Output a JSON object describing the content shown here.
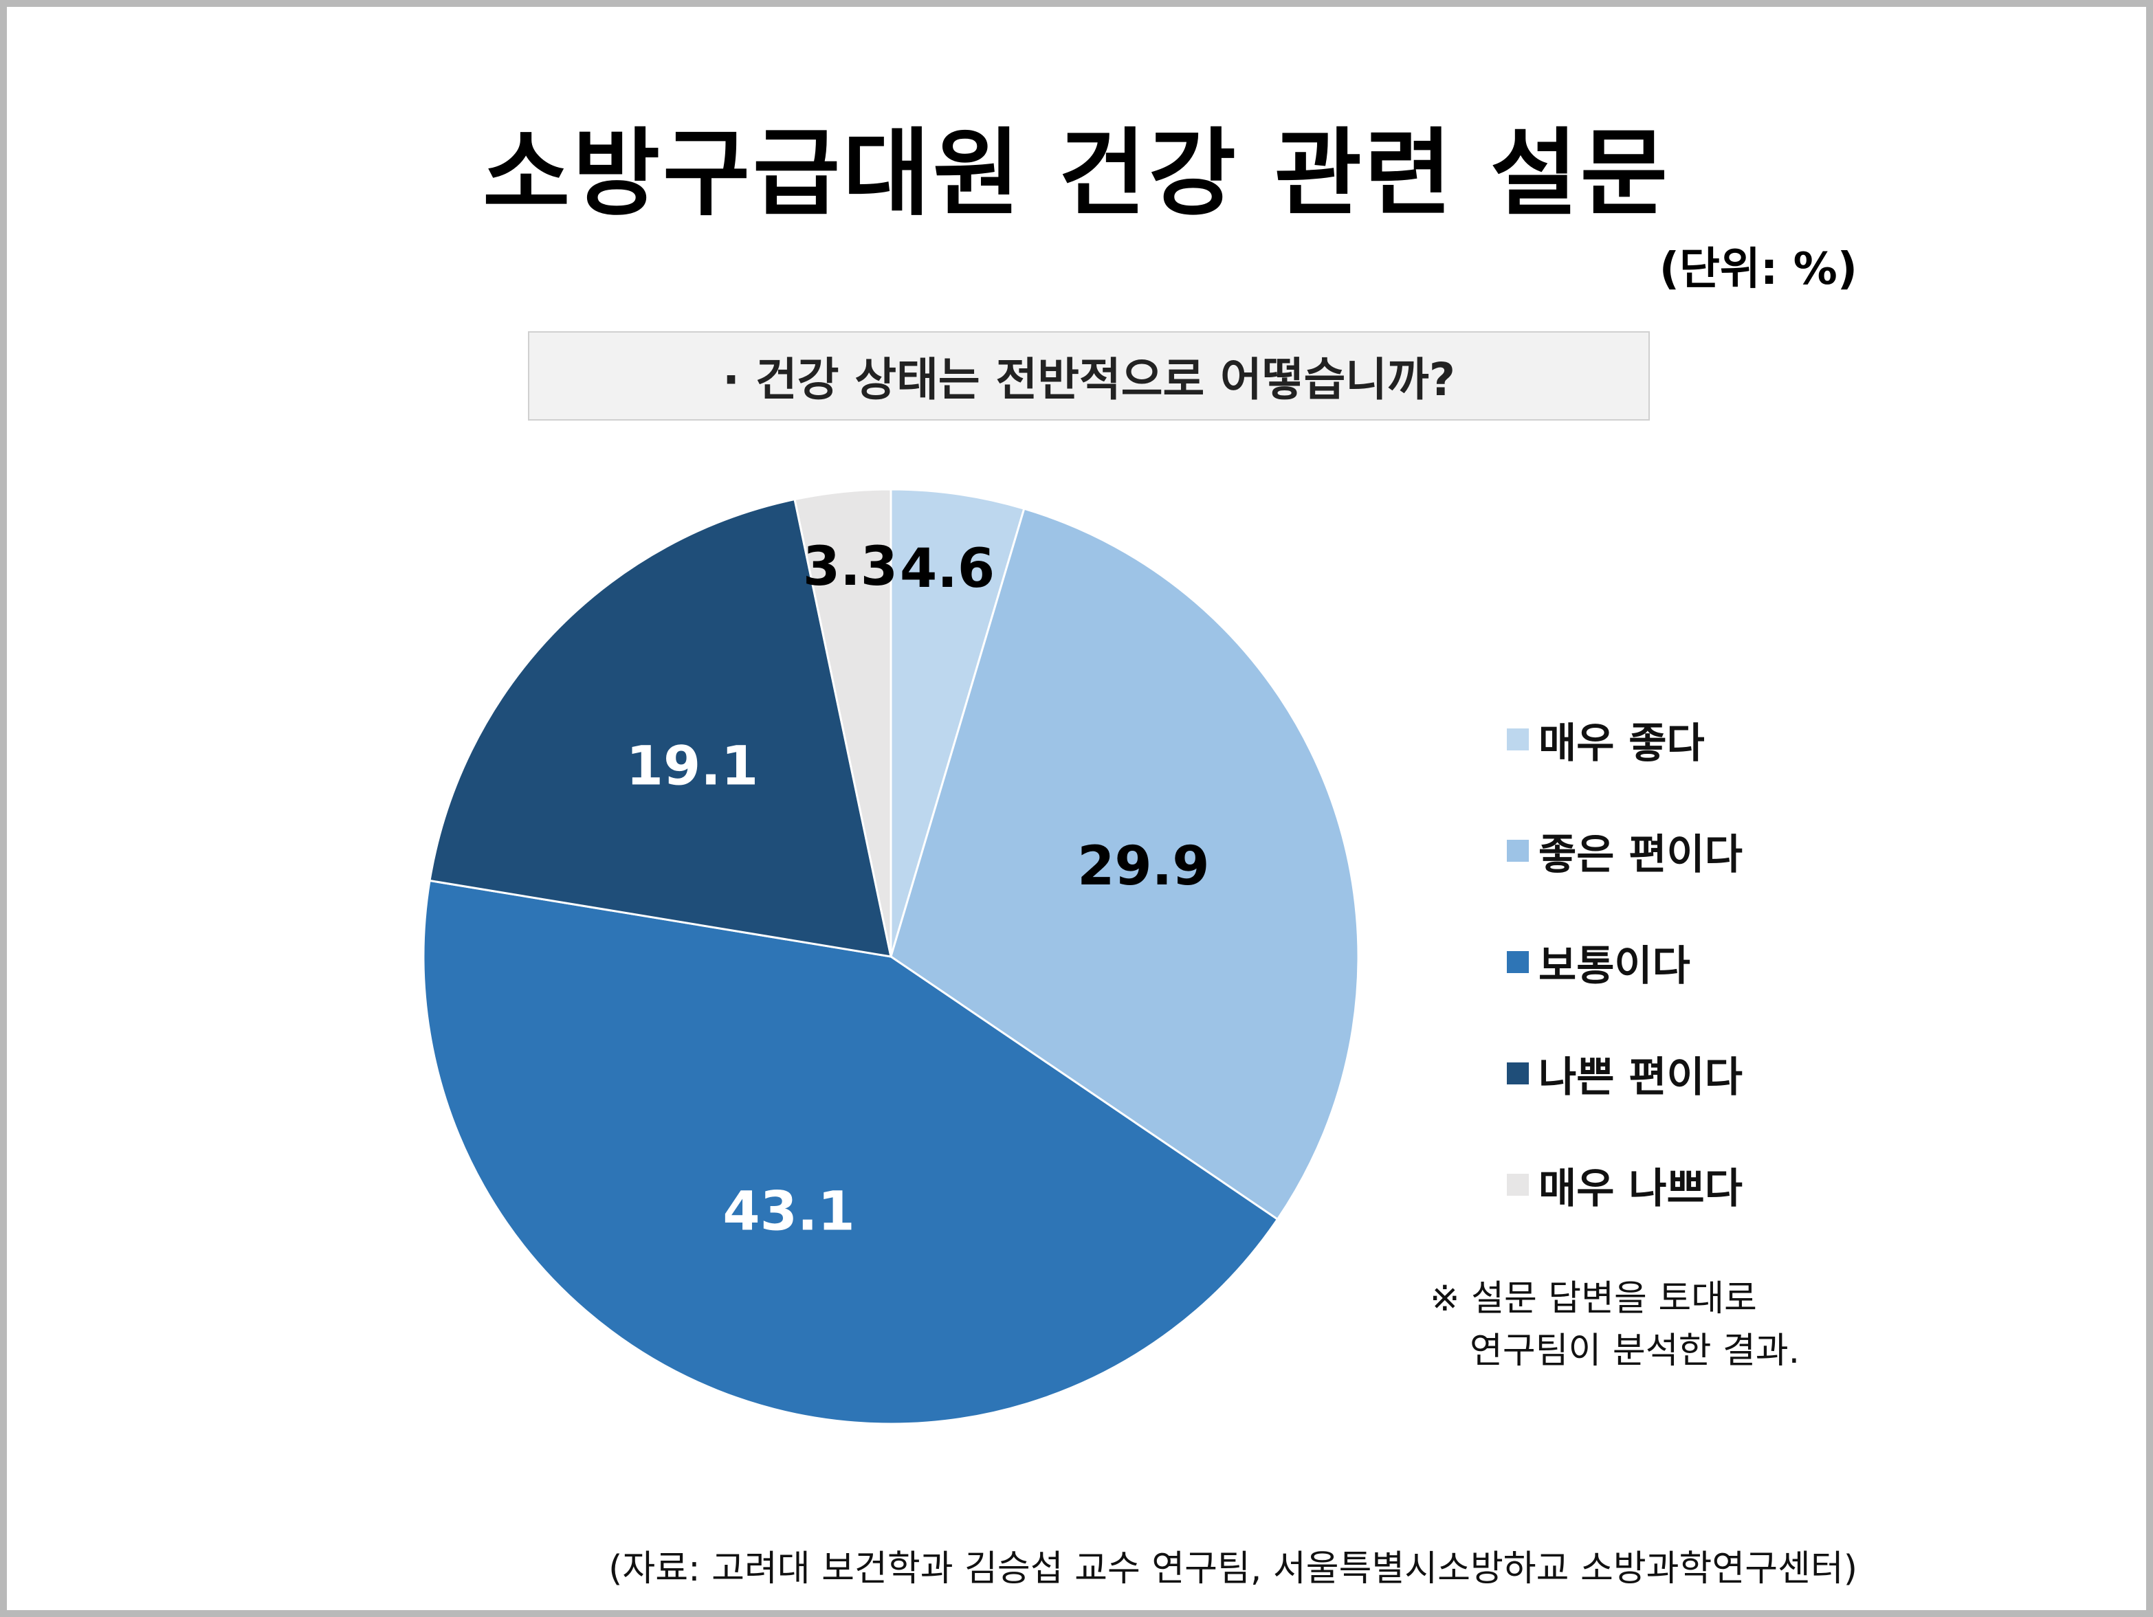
{
  "title": "소방구급대원 건강 관련 설문",
  "unit_label": "(단위: %)",
  "question": "· 건강 상태는 전반적으로 어떻습니까?",
  "note": {
    "line1": "※ 설문 답변을 토대로",
    "line2": "연구팀이 분석한 결과."
  },
  "source": "(자료:  고려대 보건학과 김승섭 교수 연구팀, 서울특별시소방하교 소방과학연구센터)",
  "chart_data": {
    "type": "pie",
    "title": "",
    "categories": [
      "매우 좋다",
      "좋은 편이다",
      "보통이다",
      "나쁜 편이다",
      "매우 나쁘다"
    ],
    "values": [
      4.6,
      29.9,
      43.1,
      19.1,
      3.3
    ],
    "data_labels": [
      "4.6",
      "29.9",
      "43.1",
      "19.1",
      "3.3"
    ],
    "colors": [
      "#bdd7ee",
      "#9dc3e6",
      "#2e75b6",
      "#1f4e79",
      "#e7e6e6"
    ],
    "label_colors": [
      "#000000",
      "#000000",
      "#ffffff",
      "#ffffff",
      "#000000"
    ],
    "start_angle": "12 o'clock",
    "direction": "clockwise",
    "legend_position": "right"
  }
}
